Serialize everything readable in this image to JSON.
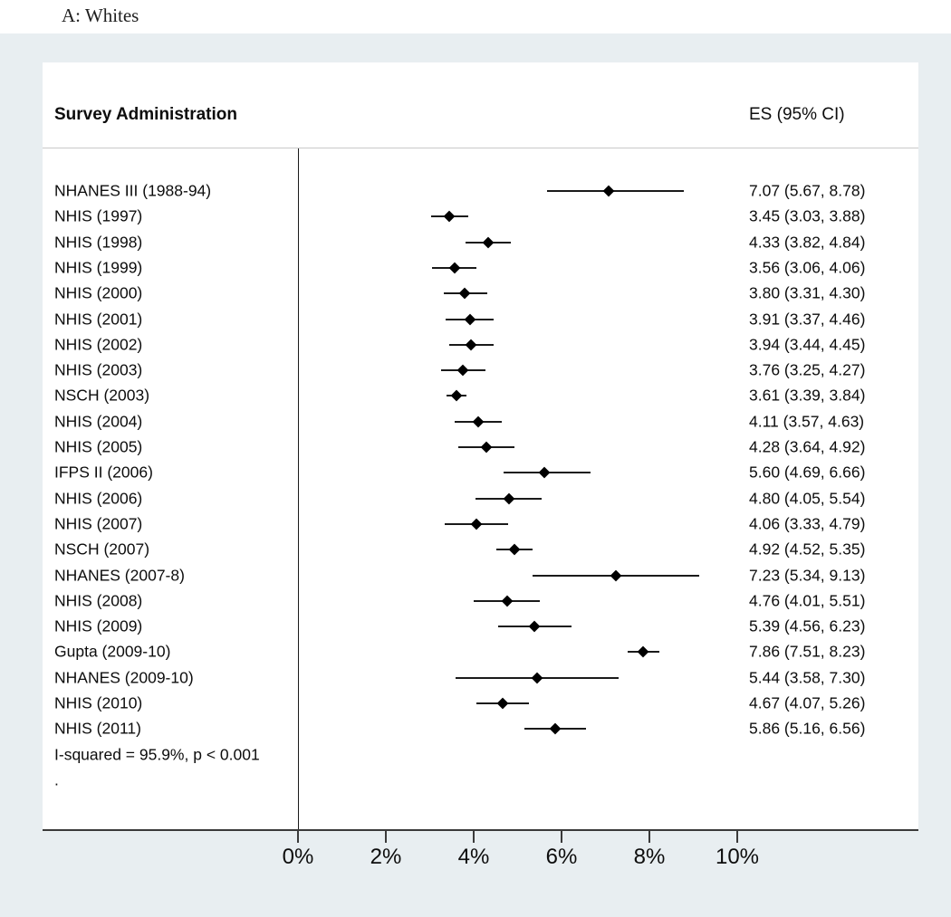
{
  "colors": {
    "page_background": "#ffffff",
    "canvas_background": "#e8eef1",
    "panel_background": "#ffffff",
    "ink": "#000000",
    "axis_line": "#3a3a3a",
    "header_separator": "#c9c9c9"
  },
  "chart_data": {
    "type": "scatter",
    "subtype": "forest-plot",
    "title": "A: Whites",
    "column_headers": {
      "left": "Survey Administration",
      "right": "ES (95% CI)"
    },
    "x_axis": {
      "tick_values": [
        0,
        2,
        4,
        6,
        8,
        10
      ],
      "tick_labels": [
        "0%",
        "2%",
        "4%",
        "6%",
        "8%",
        "10%"
      ],
      "unit": "%",
      "grid": false
    },
    "legend": "none",
    "studies": [
      {
        "label": "NHANES III (1988-94)",
        "es": 7.07,
        "ci_low": 5.67,
        "ci_high": 8.78,
        "es_text": "7.07 (5.67, 8.78)"
      },
      {
        "label": "NHIS (1997)",
        "es": 3.45,
        "ci_low": 3.03,
        "ci_high": 3.88,
        "es_text": "3.45 (3.03, 3.88)"
      },
      {
        "label": "NHIS (1998)",
        "es": 4.33,
        "ci_low": 3.82,
        "ci_high": 4.84,
        "es_text": "4.33 (3.82, 4.84)"
      },
      {
        "label": "NHIS (1999)",
        "es": 3.56,
        "ci_low": 3.06,
        "ci_high": 4.06,
        "es_text": "3.56 (3.06, 4.06)"
      },
      {
        "label": "NHIS (2000)",
        "es": 3.8,
        "ci_low": 3.31,
        "ci_high": 4.3,
        "es_text": "3.80 (3.31, 4.30)"
      },
      {
        "label": "NHIS (2001)",
        "es": 3.91,
        "ci_low": 3.37,
        "ci_high": 4.46,
        "es_text": "3.91 (3.37, 4.46)"
      },
      {
        "label": "NHIS (2002)",
        "es": 3.94,
        "ci_low": 3.44,
        "ci_high": 4.45,
        "es_text": "3.94 (3.44, 4.45)"
      },
      {
        "label": "NHIS (2003)",
        "es": 3.76,
        "ci_low": 3.25,
        "ci_high": 4.27,
        "es_text": "3.76 (3.25, 4.27)"
      },
      {
        "label": "NSCH (2003)",
        "es": 3.61,
        "ci_low": 3.39,
        "ci_high": 3.84,
        "es_text": "3.61 (3.39, 3.84)"
      },
      {
        "label": "NHIS (2004)",
        "es": 4.11,
        "ci_low": 3.57,
        "ci_high": 4.63,
        "es_text": "4.11 (3.57, 4.63)"
      },
      {
        "label": "NHIS (2005)",
        "es": 4.28,
        "ci_low": 3.64,
        "ci_high": 4.92,
        "es_text": "4.28 (3.64, 4.92)"
      },
      {
        "label": "IFPS II (2006)",
        "es": 5.6,
        "ci_low": 4.69,
        "ci_high": 6.66,
        "es_text": "5.60 (4.69, 6.66)"
      },
      {
        "label": "NHIS (2006)",
        "es": 4.8,
        "ci_low": 4.05,
        "ci_high": 5.54,
        "es_text": "4.80 (4.05, 5.54)"
      },
      {
        "label": "NHIS (2007)",
        "es": 4.06,
        "ci_low": 3.33,
        "ci_high": 4.79,
        "es_text": "4.06 (3.33, 4.79)"
      },
      {
        "label": "NSCH (2007)",
        "es": 4.92,
        "ci_low": 4.52,
        "ci_high": 5.35,
        "es_text": "4.92 (4.52, 5.35)"
      },
      {
        "label": "NHANES (2007-8)",
        "es": 7.23,
        "ci_low": 5.34,
        "ci_high": 9.13,
        "es_text": "7.23 (5.34, 9.13)"
      },
      {
        "label": "NHIS (2008)",
        "es": 4.76,
        "ci_low": 4.01,
        "ci_high": 5.51,
        "es_text": "4.76 (4.01, 5.51)"
      },
      {
        "label": "NHIS (2009)",
        "es": 5.39,
        "ci_low": 4.56,
        "ci_high": 6.23,
        "es_text": "5.39 (4.56, 6.23)"
      },
      {
        "label": "Gupta (2009-10)",
        "es": 7.86,
        "ci_low": 7.51,
        "ci_high": 8.23,
        "es_text": "7.86 (7.51, 8.23)"
      },
      {
        "label": "NHANES (2009-10)",
        "es": 5.44,
        "ci_low": 3.58,
        "ci_high": 7.3,
        "es_text": "5.44 (3.58, 7.30)"
      },
      {
        "label": "NHIS (2010)",
        "es": 4.67,
        "ci_low": 4.07,
        "ci_high": 5.26,
        "es_text": "4.67 (4.07, 5.26)"
      },
      {
        "label": "NHIS (2011)",
        "es": 5.86,
        "ci_low": 5.16,
        "ci_high": 6.56,
        "es_text": "5.86 (5.16, 6.56)"
      }
    ],
    "heterogeneity_note": "I-squared = 95.9%, p < 0.001",
    "trailing_mark": "."
  }
}
